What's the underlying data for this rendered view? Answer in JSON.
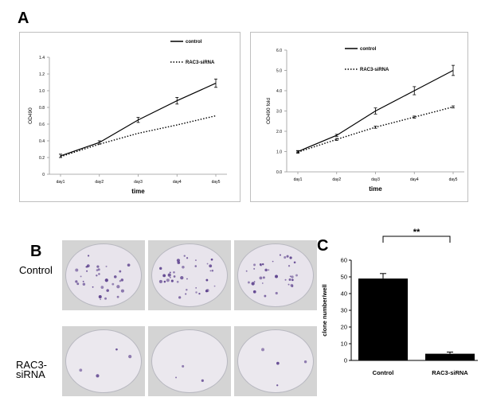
{
  "panels": {
    "a": "A",
    "b": "B",
    "c": "C"
  },
  "row_labels": {
    "control": "Control",
    "rac3_line1": "RAC3-",
    "rac3_line2": "siRNA"
  },
  "colors": {
    "line": "#000000",
    "bar": "#000000",
    "frame": "#bfbfbf",
    "colony": "#5b3f8c"
  },
  "chart_data": [
    {
      "type": "line",
      "xlabel": "time",
      "ylabel": "OD490",
      "categories": [
        "day1",
        "day2",
        "day3",
        "day4",
        "day5"
      ],
      "ylim": [
        0,
        1.4
      ],
      "yticks": [
        "0",
        "0.2",
        "0.4",
        "0.6",
        "0.8",
        "1.0",
        "1.2",
        "1.4"
      ],
      "legend_position": "top-right",
      "series": [
        {
          "name": "control",
          "style": "solid",
          "values": [
            0.22,
            0.38,
            0.65,
            0.88,
            1.09
          ],
          "errors": [
            0.02,
            0.02,
            0.03,
            0.04,
            0.05
          ]
        },
        {
          "name": "RAC3-siRNA",
          "style": "dotted",
          "values": [
            0.21,
            0.36,
            0.49,
            0.59,
            0.7
          ],
          "errors": [
            0,
            0,
            0,
            0,
            0
          ]
        }
      ]
    },
    {
      "type": "line",
      "xlabel": "time",
      "ylabel": "OD490 fold",
      "categories": [
        "day1",
        "day2",
        "day3",
        "day4",
        "day5"
      ],
      "ylim": [
        0,
        6
      ],
      "yticks": [
        "0.0",
        "1.0",
        "2.0",
        "3.0",
        "4.0",
        "5.0",
        "6.0"
      ],
      "legend_position": "top-left",
      "series": [
        {
          "name": "control",
          "style": "solid",
          "values": [
            1.0,
            1.8,
            3.0,
            4.0,
            5.0
          ],
          "errors": [
            0.05,
            0.05,
            0.15,
            0.2,
            0.25
          ]
        },
        {
          "name": "RAC3-siRNA",
          "style": "dotted",
          "values": [
            0.97,
            1.6,
            2.2,
            2.7,
            3.2
          ],
          "errors": [
            0.05,
            0.05,
            0.05,
            0.05,
            0.05
          ]
        }
      ]
    },
    {
      "type": "bar",
      "ylabel": "clone number/well",
      "categories": [
        "Control",
        "RAC3-siRNA"
      ],
      "values": [
        49,
        4
      ],
      "errors": [
        3,
        1
      ],
      "ylim": [
        0,
        60
      ],
      "yticks": [
        "0",
        "10",
        "20",
        "30",
        "40",
        "50",
        "60"
      ],
      "significance": "**"
    }
  ]
}
